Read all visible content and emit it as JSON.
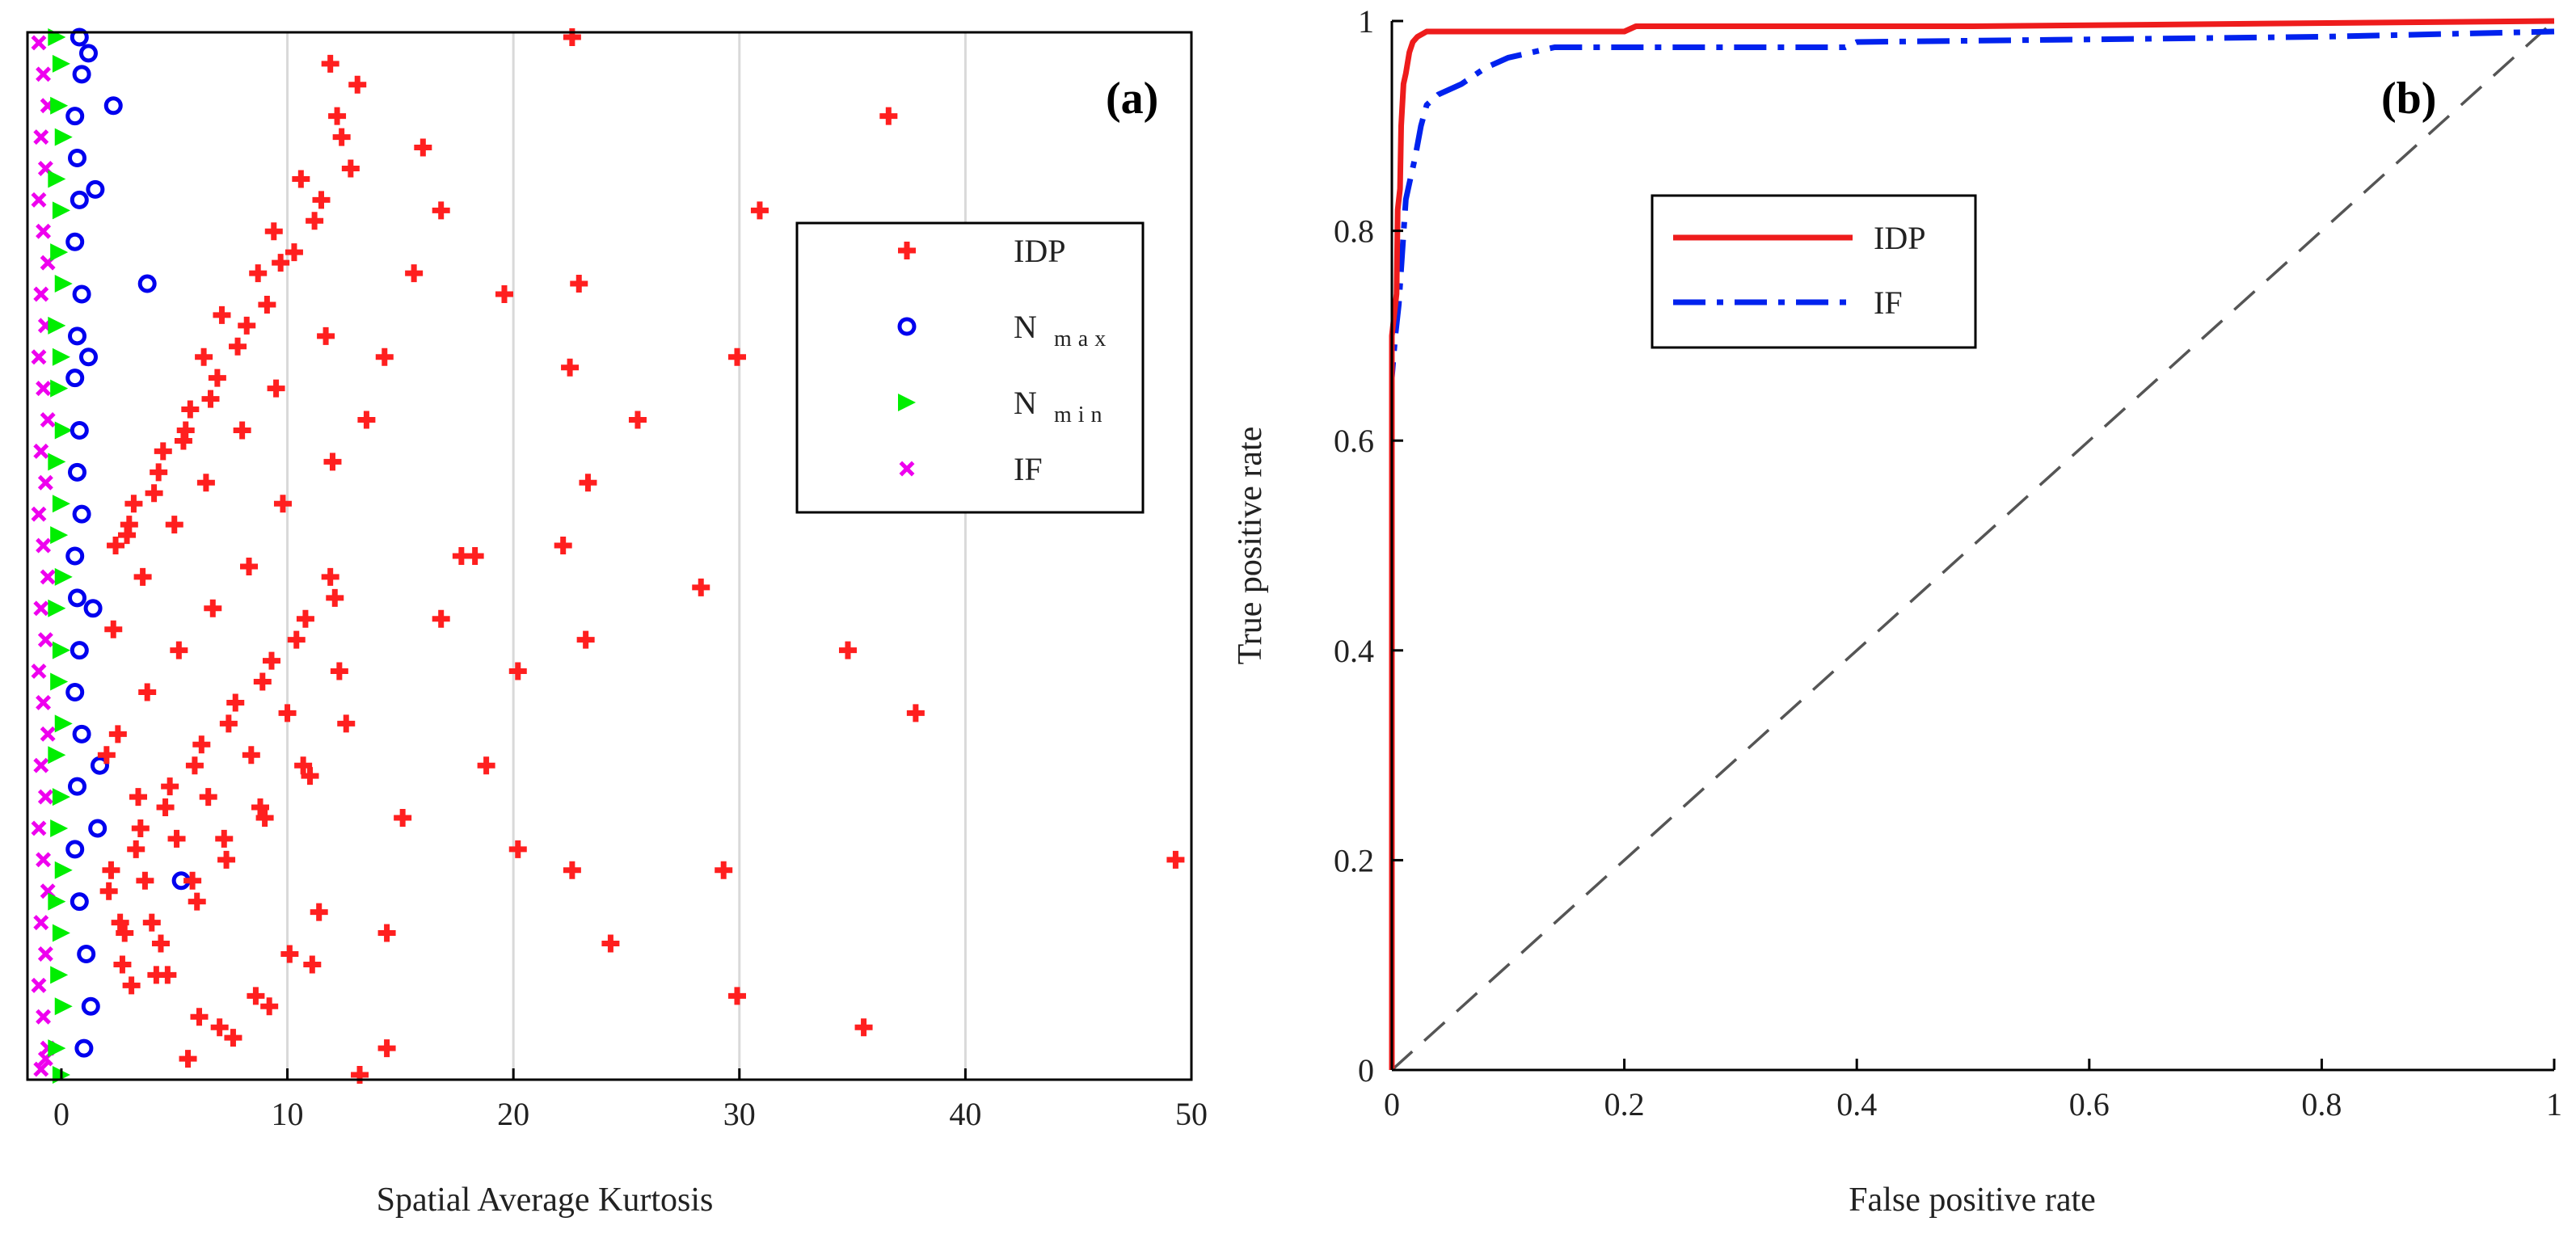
{
  "chart_data": [
    {
      "type": "scatter",
      "panel_label": "(a)",
      "title": "",
      "xlabel": "Spatial Average Kurtosis",
      "ylabel": "",
      "xlim": [
        -1.5,
        50
      ],
      "ylim": [
        0,
        1
      ],
      "xticks": [
        "0",
        "10",
        "20",
        "30",
        "40",
        "50"
      ],
      "xtick_values": [
        0,
        10,
        20,
        30,
        40,
        50
      ],
      "grid_x": true,
      "legend_position": "upper-right",
      "legend": [
        {
          "label": "IDP",
          "sub": "",
          "marker": "cross",
          "color": "#ff1f1f"
        },
        {
          "label": "N",
          "sub": "max",
          "marker": "circle",
          "color": "#0000ee"
        },
        {
          "label": "N",
          "sub": "min",
          "marker": "triangle",
          "color": "#00ee00"
        },
        {
          "label": "IF",
          "sub": "",
          "marker": "x",
          "color": "#ee00ee"
        }
      ],
      "series": [
        {
          "name": "IDP",
          "color": "#ff1f1f",
          "marker": "cross",
          "x": [
            22.6,
            36.6,
            30.9,
            22.9,
            19.6,
            14.3,
            22.5,
            29.9,
            25.5,
            23.3,
            22.2,
            28.3,
            34.8,
            23.2,
            20.2,
            37.8,
            18.8,
            15.1,
            20.2,
            22.6,
            29.3,
            49.3,
            24.3,
            14.4,
            29.9,
            35.5,
            13.2,
            14.4,
            16.0,
            16.8,
            15.6,
            17.7,
            18.3,
            16.8,
            11.9,
            12.2,
            10.6,
            9.4,
            8.7,
            7.1,
            6.3,
            5.7,
            4.5,
            3.2,
            2.4,
            13.1,
            12.4,
            11.5,
            10.3,
            9.1,
            7.8,
            6.6,
            5.4,
            4.1,
            2.9,
            12.8,
            11.2,
            9.7,
            8.2,
            6.9,
            5.5,
            4.3,
            3.0,
            11.9,
            10.8,
            9.3,
            7.7,
            6.2,
            4.8,
            3.5,
            2.2,
            12.1,
            10.4,
            8.9,
            7.4,
            5.9,
            4.6,
            3.3,
            2.1,
            11.4,
            10.1,
            8.6,
            7.0,
            5.6,
            4.2,
            2.8,
            13.5,
            12.0,
            9.8,
            8.3,
            6.7,
            5.2,
            3.8,
            2.5,
            11.0,
            9.0,
            7.3,
            6.0,
            4.4,
            3.1,
            12.6,
            10.7,
            8.8,
            7.2,
            5.8,
            4.0,
            2.7,
            11.7,
            9.5,
            8.0,
            6.4,
            5.0,
            3.6,
            2.3,
            12.3,
            10.0,
            8.4,
            6.5,
            5.1,
            3.7,
            2.6,
            11.1,
            9.2,
            7.6,
            6.1,
            4.7,
            3.4,
            2.0
          ],
          "y": [
            1.0,
            0.92,
            0.83,
            0.76,
            0.75,
            0.69,
            0.68,
            0.69,
            0.63,
            0.57,
            0.51,
            0.47,
            0.41,
            0.42,
            0.39,
            0.35,
            0.3,
            0.25,
            0.22,
            0.2,
            0.2,
            0.21,
            0.13,
            0.14,
            0.08,
            0.05,
            0.0,
            0.03,
            0.89,
            0.83,
            0.77,
            0.5,
            0.5,
            0.44,
            0.97,
            0.92,
            0.86,
            0.81,
            0.77,
            0.73,
            0.69,
            0.64,
            0.6,
            0.55,
            0.51,
            0.95,
            0.9,
            0.84,
            0.79,
            0.74,
            0.7,
            0.65,
            0.61,
            0.56,
            0.52,
            0.87,
            0.82,
            0.78,
            0.72,
            0.67,
            0.62,
            0.58,
            0.53,
            0.48,
            0.44,
            0.4,
            0.36,
            0.32,
            0.28,
            0.24,
            0.2,
            0.46,
            0.42,
            0.38,
            0.34,
            0.3,
            0.26,
            0.22,
            0.18,
            0.16,
            0.12,
            0.08,
            0.05,
            0.02,
            0.1,
            0.14,
            0.63,
            0.59,
            0.55,
            0.49,
            0.45,
            0.41,
            0.37,
            0.33,
            0.29,
            0.25,
            0.21,
            0.17,
            0.13,
            0.09,
            0.34,
            0.3,
            0.26,
            0.23,
            0.19,
            0.15,
            0.11,
            0.71,
            0.66,
            0.62,
            0.57,
            0.53,
            0.48,
            0.43,
            0.39,
            0.35,
            0.31,
            0.27,
            0.23,
            0.19,
            0.15,
            0.11,
            0.07,
            0.04,
            0.06,
            0.1,
            0.27,
            0.31
          ]
        },
        {
          "name": "N max",
          "color": "#0000ee",
          "marker": "circle",
          "x": [
            0.8,
            2.3,
            1.5,
            3.8,
            1.4,
            1.7,
            1.6,
            5.3,
            1.2,
            0.9,
            0.6,
            0.7,
            0.8,
            0.6,
            0.9,
            0.7,
            0.6,
            0.8,
            0.7,
            0.9,
            0.6,
            0.7,
            0.8,
            0.6,
            0.9,
            0.7,
            0.6,
            0.8,
            1.1,
            1.3,
            1.0,
            1.2
          ],
          "y": [
            1.0,
            0.93,
            0.85,
            0.76,
            0.45,
            0.3,
            0.24,
            0.19,
            0.98,
            0.96,
            0.92,
            0.88,
            0.84,
            0.8,
            0.75,
            0.71,
            0.67,
            0.62,
            0.58,
            0.54,
            0.5,
            0.46,
            0.41,
            0.37,
            0.33,
            0.28,
            0.22,
            0.17,
            0.12,
            0.07,
            0.03,
            0.69
          ]
        },
        {
          "name": "N min",
          "color": "#00ee00",
          "marker": "triangle",
          "x": [
            -0.2,
            0.0,
            -0.1,
            0.1,
            -0.2,
            0.0,
            -0.1,
            0.1,
            -0.2,
            0.0,
            -0.1,
            0.1,
            -0.2,
            0.0,
            -0.1,
            0.1,
            -0.2,
            0.0,
            -0.1,
            0.1,
            -0.2,
            0.0,
            -0.1,
            0.1,
            -0.2,
            0.0,
            -0.1,
            0.1,
            -0.2,
            0.0
          ],
          "y": [
            1.0,
            0.97,
            0.93,
            0.9,
            0.86,
            0.83,
            0.79,
            0.76,
            0.72,
            0.69,
            0.66,
            0.62,
            0.59,
            0.55,
            0.52,
            0.48,
            0.45,
            0.41,
            0.38,
            0.34,
            0.31,
            0.27,
            0.24,
            0.2,
            0.17,
            0.14,
            0.1,
            0.07,
            0.03,
            0.0
          ]
        },
        {
          "name": "IF",
          "color": "#ee00ee",
          "marker": "x",
          "x": [
            -1.0,
            -0.8,
            -0.6,
            -0.9,
            -0.7,
            -1.0,
            -0.8,
            -0.6,
            -0.9,
            -0.7,
            -1.0,
            -0.8,
            -0.6,
            -0.9,
            -0.7,
            -1.0,
            -0.8,
            -0.6,
            -0.9,
            -0.7,
            -1.0,
            -0.8,
            -0.6,
            -0.9,
            -0.7,
            -1.0,
            -0.8,
            -0.6,
            -0.9,
            -0.7,
            -1.0,
            -0.8,
            -0.6,
            -0.9,
            -0.7
          ],
          "y": [
            0.99,
            0.96,
            0.93,
            0.9,
            0.87,
            0.84,
            0.81,
            0.78,
            0.75,
            0.72,
            0.69,
            0.66,
            0.63,
            0.6,
            0.57,
            0.54,
            0.51,
            0.48,
            0.45,
            0.42,
            0.39,
            0.36,
            0.33,
            0.3,
            0.27,
            0.24,
            0.21,
            0.18,
            0.15,
            0.12,
            0.09,
            0.06,
            0.03,
            0.01,
            0.02
          ]
        }
      ]
    },
    {
      "type": "line",
      "panel_label": "(b)",
      "title": "",
      "xlabel": "False positive rate",
      "ylabel": "True positive rate",
      "xlim": [
        0,
        1
      ],
      "ylim": [
        0,
        1
      ],
      "xticks": [
        "0",
        "0.2",
        "0.4",
        "0.6",
        "0.8",
        "1"
      ],
      "xtick_values": [
        0,
        0.2,
        0.4,
        0.6,
        0.8,
        1
      ],
      "yticks": [
        "0",
        "0.2",
        "0.4",
        "0.6",
        "0.8",
        "1"
      ],
      "ytick_values": [
        0,
        0.2,
        0.4,
        0.6,
        0.8,
        1
      ],
      "legend_position": "upper-left-inside",
      "legend": [
        {
          "label": "IDP",
          "color": "#ee1c1c",
          "style": "solid"
        },
        {
          "label": "IF",
          "color": "#0022ee",
          "style": "dashdot"
        }
      ],
      "series": [
        {
          "name": "IDP",
          "color": "#ee1c1c",
          "style": "solid",
          "x": [
            0,
            0,
            0.002,
            0.004,
            0.005,
            0.007,
            0.008,
            0.01,
            0.012,
            0.015,
            0.018,
            0.022,
            0.03,
            0.05,
            0.1,
            0.2,
            0.21,
            0.5,
            1.0
          ],
          "y": [
            0,
            0.7,
            0.72,
            0.74,
            0.82,
            0.84,
            0.9,
            0.94,
            0.95,
            0.97,
            0.98,
            0.985,
            0.99,
            0.99,
            0.99,
            0.99,
            0.995,
            0.995,
            1.0
          ]
        },
        {
          "name": "IF",
          "color": "#0022ee",
          "style": "dashdot",
          "x": [
            0,
            0,
            0.003,
            0.006,
            0.009,
            0.012,
            0.016,
            0.02,
            0.025,
            0.03,
            0.04,
            0.06,
            0.08,
            0.1,
            0.12,
            0.14,
            0.16,
            0.3,
            0.39,
            0.4,
            0.8,
            1.0
          ],
          "y": [
            0,
            0.66,
            0.7,
            0.73,
            0.78,
            0.83,
            0.85,
            0.87,
            0.9,
            0.92,
            0.93,
            0.94,
            0.955,
            0.965,
            0.97,
            0.975,
            0.975,
            0.975,
            0.975,
            0.98,
            0.985,
            0.99
          ]
        },
        {
          "name": "chance",
          "color": "#555555",
          "style": "dashed",
          "x": [
            0,
            1
          ],
          "y": [
            0,
            1
          ]
        }
      ]
    }
  ]
}
